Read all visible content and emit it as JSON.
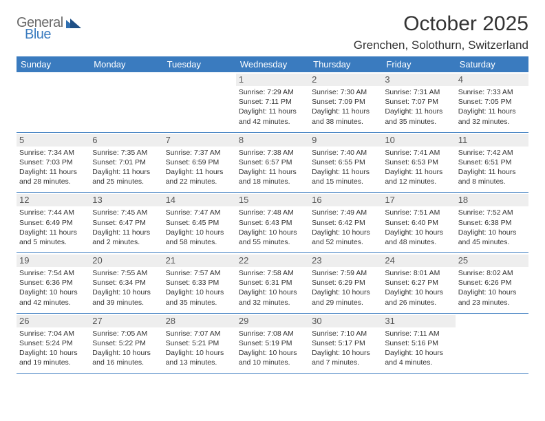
{
  "colors": {
    "brand_blue": "#3a7bbf",
    "header_text": "#333333",
    "daynum_bg": "#eeeeee",
    "background": "#ffffff",
    "logo_gray": "#6a6a6a"
  },
  "logo": {
    "word1": "General",
    "word2": "Blue"
  },
  "title": "October 2025",
  "subtitle": "Grenchen, Solothurn, Switzerland",
  "days_of_week": [
    "Sunday",
    "Monday",
    "Tuesday",
    "Wednesday",
    "Thursday",
    "Friday",
    "Saturday"
  ],
  "weeks": [
    [
      {
        "n": "",
        "sr": "",
        "ss": "",
        "d1": "",
        "d2": ""
      },
      {
        "n": "",
        "sr": "",
        "ss": "",
        "d1": "",
        "d2": ""
      },
      {
        "n": "",
        "sr": "",
        "ss": "",
        "d1": "",
        "d2": ""
      },
      {
        "n": "1",
        "sr": "Sunrise: 7:29 AM",
        "ss": "Sunset: 7:11 PM",
        "d1": "Daylight: 11 hours",
        "d2": "and 42 minutes."
      },
      {
        "n": "2",
        "sr": "Sunrise: 7:30 AM",
        "ss": "Sunset: 7:09 PM",
        "d1": "Daylight: 11 hours",
        "d2": "and 38 minutes."
      },
      {
        "n": "3",
        "sr": "Sunrise: 7:31 AM",
        "ss": "Sunset: 7:07 PM",
        "d1": "Daylight: 11 hours",
        "d2": "and 35 minutes."
      },
      {
        "n": "4",
        "sr": "Sunrise: 7:33 AM",
        "ss": "Sunset: 7:05 PM",
        "d1": "Daylight: 11 hours",
        "d2": "and 32 minutes."
      }
    ],
    [
      {
        "n": "5",
        "sr": "Sunrise: 7:34 AM",
        "ss": "Sunset: 7:03 PM",
        "d1": "Daylight: 11 hours",
        "d2": "and 28 minutes."
      },
      {
        "n": "6",
        "sr": "Sunrise: 7:35 AM",
        "ss": "Sunset: 7:01 PM",
        "d1": "Daylight: 11 hours",
        "d2": "and 25 minutes."
      },
      {
        "n": "7",
        "sr": "Sunrise: 7:37 AM",
        "ss": "Sunset: 6:59 PM",
        "d1": "Daylight: 11 hours",
        "d2": "and 22 minutes."
      },
      {
        "n": "8",
        "sr": "Sunrise: 7:38 AM",
        "ss": "Sunset: 6:57 PM",
        "d1": "Daylight: 11 hours",
        "d2": "and 18 minutes."
      },
      {
        "n": "9",
        "sr": "Sunrise: 7:40 AM",
        "ss": "Sunset: 6:55 PM",
        "d1": "Daylight: 11 hours",
        "d2": "and 15 minutes."
      },
      {
        "n": "10",
        "sr": "Sunrise: 7:41 AM",
        "ss": "Sunset: 6:53 PM",
        "d1": "Daylight: 11 hours",
        "d2": "and 12 minutes."
      },
      {
        "n": "11",
        "sr": "Sunrise: 7:42 AM",
        "ss": "Sunset: 6:51 PM",
        "d1": "Daylight: 11 hours",
        "d2": "and 8 minutes."
      }
    ],
    [
      {
        "n": "12",
        "sr": "Sunrise: 7:44 AM",
        "ss": "Sunset: 6:49 PM",
        "d1": "Daylight: 11 hours",
        "d2": "and 5 minutes."
      },
      {
        "n": "13",
        "sr": "Sunrise: 7:45 AM",
        "ss": "Sunset: 6:47 PM",
        "d1": "Daylight: 11 hours",
        "d2": "and 2 minutes."
      },
      {
        "n": "14",
        "sr": "Sunrise: 7:47 AM",
        "ss": "Sunset: 6:45 PM",
        "d1": "Daylight: 10 hours",
        "d2": "and 58 minutes."
      },
      {
        "n": "15",
        "sr": "Sunrise: 7:48 AM",
        "ss": "Sunset: 6:43 PM",
        "d1": "Daylight: 10 hours",
        "d2": "and 55 minutes."
      },
      {
        "n": "16",
        "sr": "Sunrise: 7:49 AM",
        "ss": "Sunset: 6:42 PM",
        "d1": "Daylight: 10 hours",
        "d2": "and 52 minutes."
      },
      {
        "n": "17",
        "sr": "Sunrise: 7:51 AM",
        "ss": "Sunset: 6:40 PM",
        "d1": "Daylight: 10 hours",
        "d2": "and 48 minutes."
      },
      {
        "n": "18",
        "sr": "Sunrise: 7:52 AM",
        "ss": "Sunset: 6:38 PM",
        "d1": "Daylight: 10 hours",
        "d2": "and 45 minutes."
      }
    ],
    [
      {
        "n": "19",
        "sr": "Sunrise: 7:54 AM",
        "ss": "Sunset: 6:36 PM",
        "d1": "Daylight: 10 hours",
        "d2": "and 42 minutes."
      },
      {
        "n": "20",
        "sr": "Sunrise: 7:55 AM",
        "ss": "Sunset: 6:34 PM",
        "d1": "Daylight: 10 hours",
        "d2": "and 39 minutes."
      },
      {
        "n": "21",
        "sr": "Sunrise: 7:57 AM",
        "ss": "Sunset: 6:33 PM",
        "d1": "Daylight: 10 hours",
        "d2": "and 35 minutes."
      },
      {
        "n": "22",
        "sr": "Sunrise: 7:58 AM",
        "ss": "Sunset: 6:31 PM",
        "d1": "Daylight: 10 hours",
        "d2": "and 32 minutes."
      },
      {
        "n": "23",
        "sr": "Sunrise: 7:59 AM",
        "ss": "Sunset: 6:29 PM",
        "d1": "Daylight: 10 hours",
        "d2": "and 29 minutes."
      },
      {
        "n": "24",
        "sr": "Sunrise: 8:01 AM",
        "ss": "Sunset: 6:27 PM",
        "d1": "Daylight: 10 hours",
        "d2": "and 26 minutes."
      },
      {
        "n": "25",
        "sr": "Sunrise: 8:02 AM",
        "ss": "Sunset: 6:26 PM",
        "d1": "Daylight: 10 hours",
        "d2": "and 23 minutes."
      }
    ],
    [
      {
        "n": "26",
        "sr": "Sunrise: 7:04 AM",
        "ss": "Sunset: 5:24 PM",
        "d1": "Daylight: 10 hours",
        "d2": "and 19 minutes."
      },
      {
        "n": "27",
        "sr": "Sunrise: 7:05 AM",
        "ss": "Sunset: 5:22 PM",
        "d1": "Daylight: 10 hours",
        "d2": "and 16 minutes."
      },
      {
        "n": "28",
        "sr": "Sunrise: 7:07 AM",
        "ss": "Sunset: 5:21 PM",
        "d1": "Daylight: 10 hours",
        "d2": "and 13 minutes."
      },
      {
        "n": "29",
        "sr": "Sunrise: 7:08 AM",
        "ss": "Sunset: 5:19 PM",
        "d1": "Daylight: 10 hours",
        "d2": "and 10 minutes."
      },
      {
        "n": "30",
        "sr": "Sunrise: 7:10 AM",
        "ss": "Sunset: 5:17 PM",
        "d1": "Daylight: 10 hours",
        "d2": "and 7 minutes."
      },
      {
        "n": "31",
        "sr": "Sunrise: 7:11 AM",
        "ss": "Sunset: 5:16 PM",
        "d1": "Daylight: 10 hours",
        "d2": "and 4 minutes."
      },
      {
        "n": "",
        "sr": "",
        "ss": "",
        "d1": "",
        "d2": ""
      }
    ]
  ]
}
